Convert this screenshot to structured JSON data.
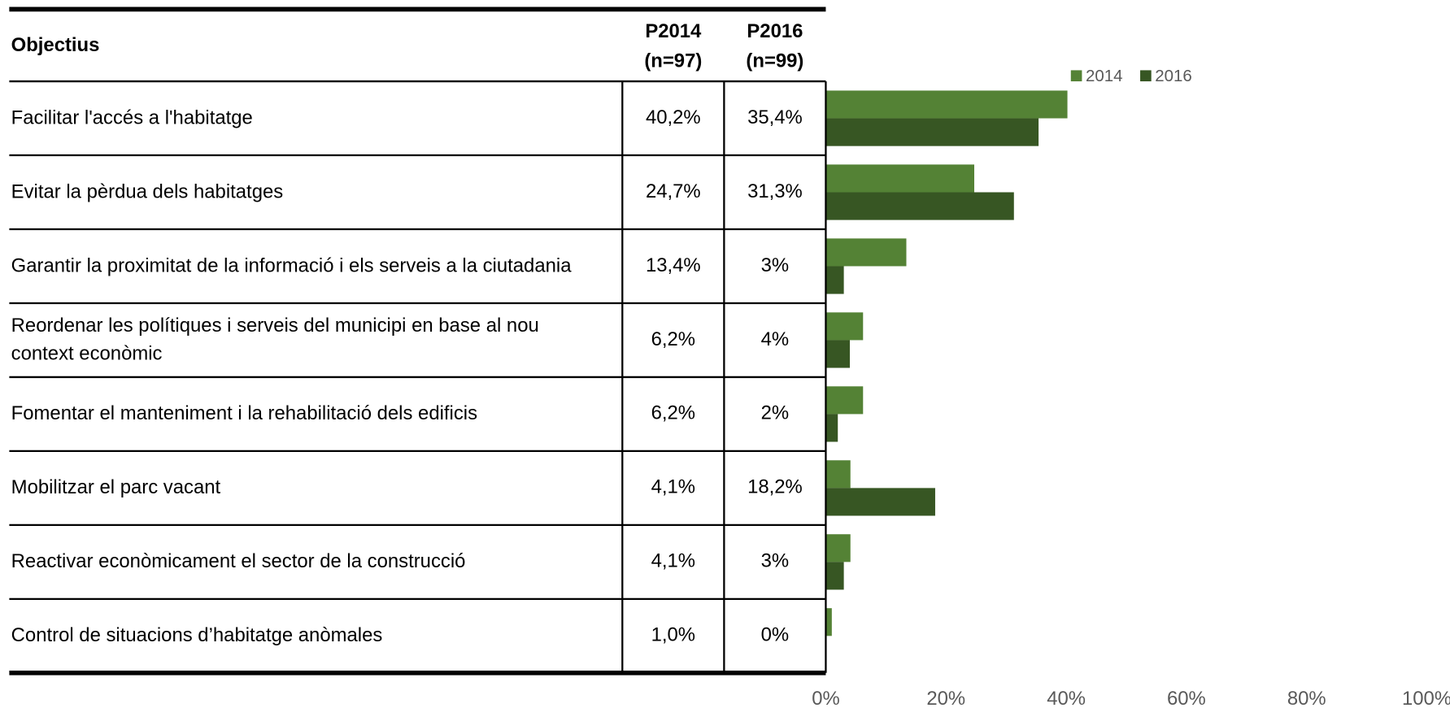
{
  "table": {
    "headers": [
      [
        "Objectius"
      ],
      [
        "P2014",
        "(n=97)"
      ],
      [
        "P2016",
        "(n=99)"
      ]
    ]
  },
  "chart_data": {
    "type": "bar",
    "orientation": "horizontal",
    "categories": [
      "Facilitar l'accés a l'habitatge",
      "Evitar la pèrdua dels habitatges",
      "Garantir la proximitat de la informació i els serveis a la ciutadania",
      "Reordenar les polítiques i serveis del municipi en base al nou context econòmic",
      "Fomentar el manteniment i la rehabilitació dels edificis",
      "Mobilitzar el parc vacant",
      "Reactivar econòmicament el sector de la construcció",
      "Control de situacions d’habitatge anòmales"
    ],
    "series": [
      {
        "name": "2014",
        "color": "#548235",
        "values": [
          40.2,
          24.7,
          13.4,
          6.2,
          6.2,
          4.1,
          4.1,
          1.0
        ],
        "value_labels": [
          "40,2%",
          "24,7%",
          "13,4%",
          "6,2%",
          "6,2%",
          "4,1%",
          "4,1%",
          "1,0%"
        ]
      },
      {
        "name": "2016",
        "color": "#375623",
        "values": [
          35.4,
          31.3,
          3,
          4,
          2,
          18.2,
          3,
          0
        ],
        "value_labels": [
          "35,4%",
          "31,3%",
          "3%",
          "4%",
          "2%",
          "18,2%",
          "3%",
          "0%"
        ]
      }
    ],
    "xlim": [
      0,
      100
    ],
    "xticks": [
      {
        "value": 0,
        "label": "0%"
      },
      {
        "value": 20,
        "label": "20%"
      },
      {
        "value": 40,
        "label": "40%"
      },
      {
        "value": 60,
        "label": "60%"
      },
      {
        "value": 80,
        "label": "80%"
      },
      {
        "value": 100,
        "label": "100%"
      }
    ],
    "legend": "top"
  }
}
